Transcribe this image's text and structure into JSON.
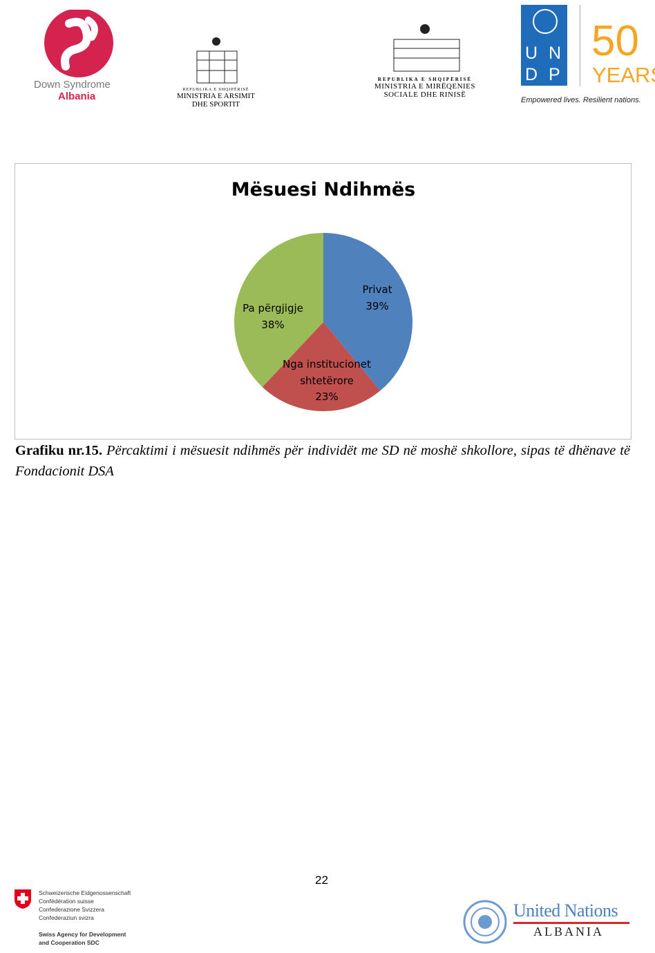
{
  "header": {
    "dsa_logo": {
      "line1": "Down Syndrome",
      "line2": "Albania"
    },
    "ministry_education": {
      "small": "REPUBLIKA E SHQIPËRISË",
      "line1": "MINISTRIA E ARSIMIT",
      "line2": "DHE SPORTIT"
    },
    "ministry_social": {
      "small": "REPUBLIKA E SHQIPËRISË",
      "line1": "MINISTRIA E MIRËQENIES",
      "line2": "SOCIALE DHE RINISË"
    },
    "undp": {
      "letters": [
        "U",
        "N",
        "D",
        "P"
      ],
      "fifty": "50",
      "years": "YEARS",
      "tagline": "Empowered lives. Resilient nations."
    }
  },
  "chart_data": {
    "type": "pie",
    "title": "Mësuesi Ndihmës",
    "slices": [
      {
        "label": "Privat",
        "value": 39,
        "value_label": "39%",
        "color": "#4f81bd"
      },
      {
        "label": "Nga institucionet shtetërore",
        "label_lines": [
          "Nga institucionet",
          "shtetërore"
        ],
        "value": 23,
        "value_label": "23%",
        "color": "#c0504d"
      },
      {
        "label": "Pa përgjigje",
        "value": 38,
        "value_label": "38%",
        "color": "#9bbb59"
      }
    ]
  },
  "caption": {
    "bold": "Grafiku nr.15.",
    "italic": " Përcaktimi i mësuesit ndihmës për individët me SD në moshë shkollore, sipas të dhënave të Fondacionit DSA"
  },
  "page_number": "22",
  "footer": {
    "swiss": {
      "lines": [
        "Schweizerische Eidgenossenschaft",
        "Confédération suisse",
        "Confederazione Svizzera",
        "Confederaziun svizra"
      ],
      "agency1": "Swiss Agency for Development",
      "agency2": "and Cooperation SDC"
    },
    "un": {
      "line1": "United Nations",
      "line2": "ALBANIA"
    }
  }
}
